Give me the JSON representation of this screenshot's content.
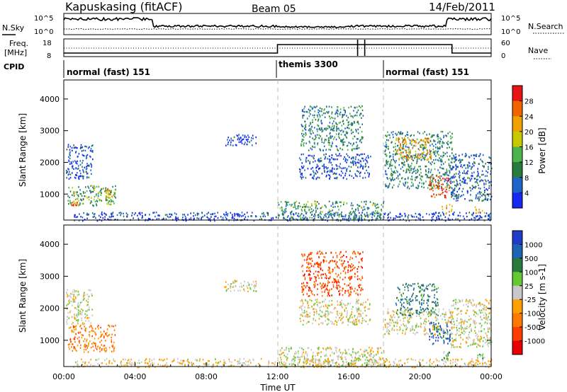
{
  "header": {
    "station": "Kapuskasing (fitACF)",
    "beam": "Beam 05",
    "date": "14/Feb/2011"
  },
  "noise_panel": {
    "left_label": "N.Sky",
    "right_label": "N.Search",
    "ticks_left": [
      "10^5",
      "10^0"
    ],
    "ticks_right": [
      "10^5",
      "10^0"
    ]
  },
  "freq_panel": {
    "left_label_1": "Freq.",
    "left_label_2": "[MHz]",
    "right_label": "Nave",
    "ticks_left": [
      "18",
      "8"
    ],
    "ticks_right": [
      "60",
      "0"
    ]
  },
  "cpid_panel": {
    "label": "CPID",
    "segments": [
      {
        "label": "normal (fast) 151",
        "start": 0,
        "end": 12
      },
      {
        "label": "themis 3300",
        "start": 12,
        "end": 18
      },
      {
        "label": "normal (fast) 151",
        "start": 18,
        "end": 24
      }
    ]
  },
  "chart_data": [
    {
      "type": "heatmap",
      "name": "power",
      "ylabel": "Slant Range [km]",
      "ylim": [
        180,
        4600
      ],
      "y_ticks": [
        "1000",
        "2000",
        "3000",
        "4000"
      ],
      "x_range_hours": [
        0,
        24
      ],
      "colorbar": {
        "label": "Power [dB]",
        "ticks": [
          "4",
          "8",
          "12",
          "16",
          "20",
          "24",
          "28"
        ],
        "colors": [
          "#1428f0",
          "#1e64c8",
          "#287a3c",
          "#4cb44c",
          "#c8c800",
          "#f0a000",
          "#f06400",
          "#e61414"
        ]
      },
      "regions": [
        {
          "t": [
            0.2,
            2.9
          ],
          "r": [
            650,
            1300
          ],
          "level": 0.4
        },
        {
          "t": [
            0.1,
            1.6
          ],
          "r": [
            1500,
            2600
          ],
          "level": 0.15
        },
        {
          "t": [
            0.4,
            0.8
          ],
          "r": [
            650,
            760
          ],
          "level": 0.8
        },
        {
          "t": [
            2.3,
            2.7
          ],
          "r": [
            900,
            1150
          ],
          "level": 0.65
        },
        {
          "t": [
            9.0,
            10.8
          ],
          "r": [
            2550,
            2900
          ],
          "level": 0.1
        },
        {
          "t": [
            0.5,
            24
          ],
          "r": [
            180,
            450
          ],
          "level": 0.12
        },
        {
          "t": [
            12.0,
            18.0
          ],
          "r": [
            180,
            800
          ],
          "level": 0.35
        },
        {
          "t": [
            13.2,
            17.2
          ],
          "r": [
            1500,
            2300
          ],
          "level": 0.12
        },
        {
          "t": [
            13.3,
            16.8
          ],
          "r": [
            2400,
            3800
          ],
          "level": 0.3
        },
        {
          "t": [
            18.0,
            21.8
          ],
          "r": [
            1200,
            3000
          ],
          "level": 0.3
        },
        {
          "t": [
            18.6,
            20.6
          ],
          "r": [
            2100,
            2800
          ],
          "level": 0.7
        },
        {
          "t": [
            20.5,
            21.7
          ],
          "r": [
            900,
            1600
          ],
          "level": 0.9
        },
        {
          "t": [
            21.2,
            21.8
          ],
          "r": [
            400,
            700
          ],
          "level": 0.7
        },
        {
          "t": [
            21.7,
            24.0
          ],
          "r": [
            800,
            2300
          ],
          "level": 0.2
        },
        {
          "t": [
            23.0,
            23.6
          ],
          "r": [
            400,
            650
          ],
          "level": 0.75
        }
      ]
    },
    {
      "type": "heatmap",
      "name": "velocity",
      "ylabel": "Slant Range [km]",
      "ylim": [
        180,
        4600
      ],
      "y_ticks": [
        "1000",
        "2000",
        "3000",
        "4000"
      ],
      "x_range_hours": [
        0,
        24
      ],
      "x_ticks": [
        "00:00",
        "04:00",
        "08:00",
        "12:00",
        "16:00",
        "20:00",
        "00:00"
      ],
      "xlabel": "Time UT",
      "colorbar": {
        "label": "Velocity [m s-1]",
        "ticks": [
          "1000",
          "500",
          "100",
          "25",
          "-25",
          "-100",
          "-500",
          "-1000"
        ],
        "colors": [
          "#1e3cc8",
          "#1e64b4",
          "#287a3c",
          "#64c832",
          "#c8c8c8",
          "#ffa000",
          "#ff7800",
          "#ff3c00",
          "#e60000"
        ]
      },
      "regions": [
        {
          "t": [
            0.2,
            2.9
          ],
          "r": [
            650,
            1500
          ],
          "level": 0.3
        },
        {
          "t": [
            0.1,
            1.6
          ],
          "r": [
            1500,
            2600
          ],
          "level": 0.5
        },
        {
          "t": [
            9.0,
            10.8
          ],
          "r": [
            2550,
            2900
          ],
          "level": 0.5
        },
        {
          "t": [
            0.5,
            24
          ],
          "r": [
            180,
            450
          ],
          "level": 0.45
        },
        {
          "t": [
            12.0,
            18.0
          ],
          "r": [
            180,
            800
          ],
          "level": 0.5
        },
        {
          "t": [
            13.2,
            17.2
          ],
          "r": [
            1500,
            2300
          ],
          "level": 0.5
        },
        {
          "t": [
            13.3,
            16.8
          ],
          "r": [
            2400,
            3800
          ],
          "level": 0.2
        },
        {
          "t": [
            18.0,
            21.8
          ],
          "r": [
            1200,
            2000
          ],
          "level": 0.5
        },
        {
          "t": [
            18.6,
            21.0
          ],
          "r": [
            1800,
            2800
          ],
          "level": 0.75
        },
        {
          "t": [
            20.5,
            21.7
          ],
          "r": [
            900,
            1600
          ],
          "level": 0.85
        },
        {
          "t": [
            21.2,
            21.8
          ],
          "r": [
            400,
            700
          ],
          "level": 0.65
        },
        {
          "t": [
            21.7,
            24.0
          ],
          "r": [
            800,
            2300
          ],
          "level": 0.5
        },
        {
          "t": [
            23.0,
            23.6
          ],
          "r": [
            400,
            650
          ],
          "level": 0.65
        }
      ]
    }
  ]
}
